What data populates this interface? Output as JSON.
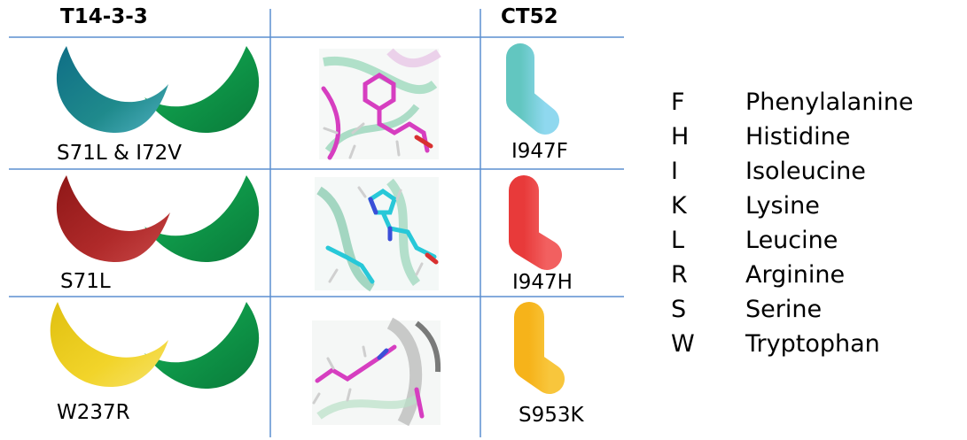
{
  "headers": {
    "left": "T14-3-3",
    "right": "CT52"
  },
  "rows": [
    {
      "t14_label": "S71L & I72V",
      "t14_color": "#1a7f8c",
      "ct52_label": "I947F",
      "ct52_color": "#7dd3e0"
    },
    {
      "t14_label": "S71L",
      "t14_color": "#a32424",
      "ct52_label": "I947H",
      "ct52_color": "#f04848"
    },
    {
      "t14_label": "W237R",
      "t14_color": "#e8c81a",
      "ct52_label": "S953K",
      "ct52_color": "#f6b91c"
    }
  ],
  "partner_color": "#11a350",
  "legend": [
    {
      "code": "F",
      "name": "Phenylalanine"
    },
    {
      "code": "H",
      "name": "Histidine"
    },
    {
      "code": "I",
      "name": "Isoleucine"
    },
    {
      "code": "K",
      "name": "Lysine"
    },
    {
      "code": "L",
      "name": "Leucine"
    },
    {
      "code": "R",
      "name": "Arginine"
    },
    {
      "code": "S",
      "name": "Serine"
    },
    {
      "code": "W",
      "name": "Tryptophan"
    }
  ],
  "structure_colors": {
    "pink": "#d63ec0",
    "cyan": "#28c8d8",
    "green": "#7fc9a4",
    "grey": "#bdbdbd",
    "blue": "#3b4fd8",
    "red": "#d83030"
  }
}
